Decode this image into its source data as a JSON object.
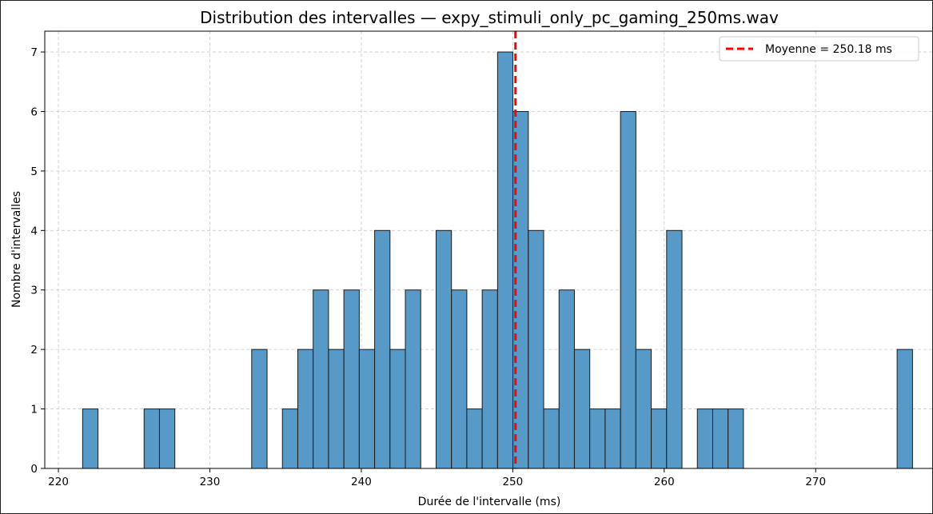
{
  "chart_data": {
    "type": "bar",
    "title": "Distribution des intervalles — expy_stimuli_only_pc_gaming_250ms.wav",
    "xlabel": "Durée de l'intervalle (ms)",
    "ylabel": "Nombre d'intervalles",
    "xlim": [
      219.1,
      277.8
    ],
    "ylim": [
      0,
      7.35
    ],
    "xticks": [
      220,
      230,
      240,
      250,
      260,
      270
    ],
    "yticks": [
      0,
      1,
      2,
      3,
      4,
      5,
      6,
      7
    ],
    "grid": true,
    "legend_placement": "top-right",
    "bin_start": 221.6,
    "bin_width": 1.0147,
    "counts": [
      1,
      0,
      0,
      0,
      1,
      1,
      0,
      0,
      0,
      0,
      0,
      2,
      0,
      1,
      2,
      3,
      2,
      3,
      2,
      4,
      2,
      3,
      0,
      4,
      3,
      1,
      3,
      7,
      6,
      4,
      1,
      3,
      2,
      1,
      1,
      6,
      2,
      1,
      4,
      0,
      1,
      1,
      1,
      0,
      0,
      0,
      0,
      0,
      0,
      0,
      0,
      0,
      0,
      2
    ],
    "series": [
      {
        "name": "Moyenne = 250.18 ms",
        "type": "vline",
        "x": 250.18,
        "color": "#ff0000",
        "style": "dashed"
      }
    ],
    "bar_color": "#5799c7",
    "bar_edge_color": "#1a1a1a"
  }
}
